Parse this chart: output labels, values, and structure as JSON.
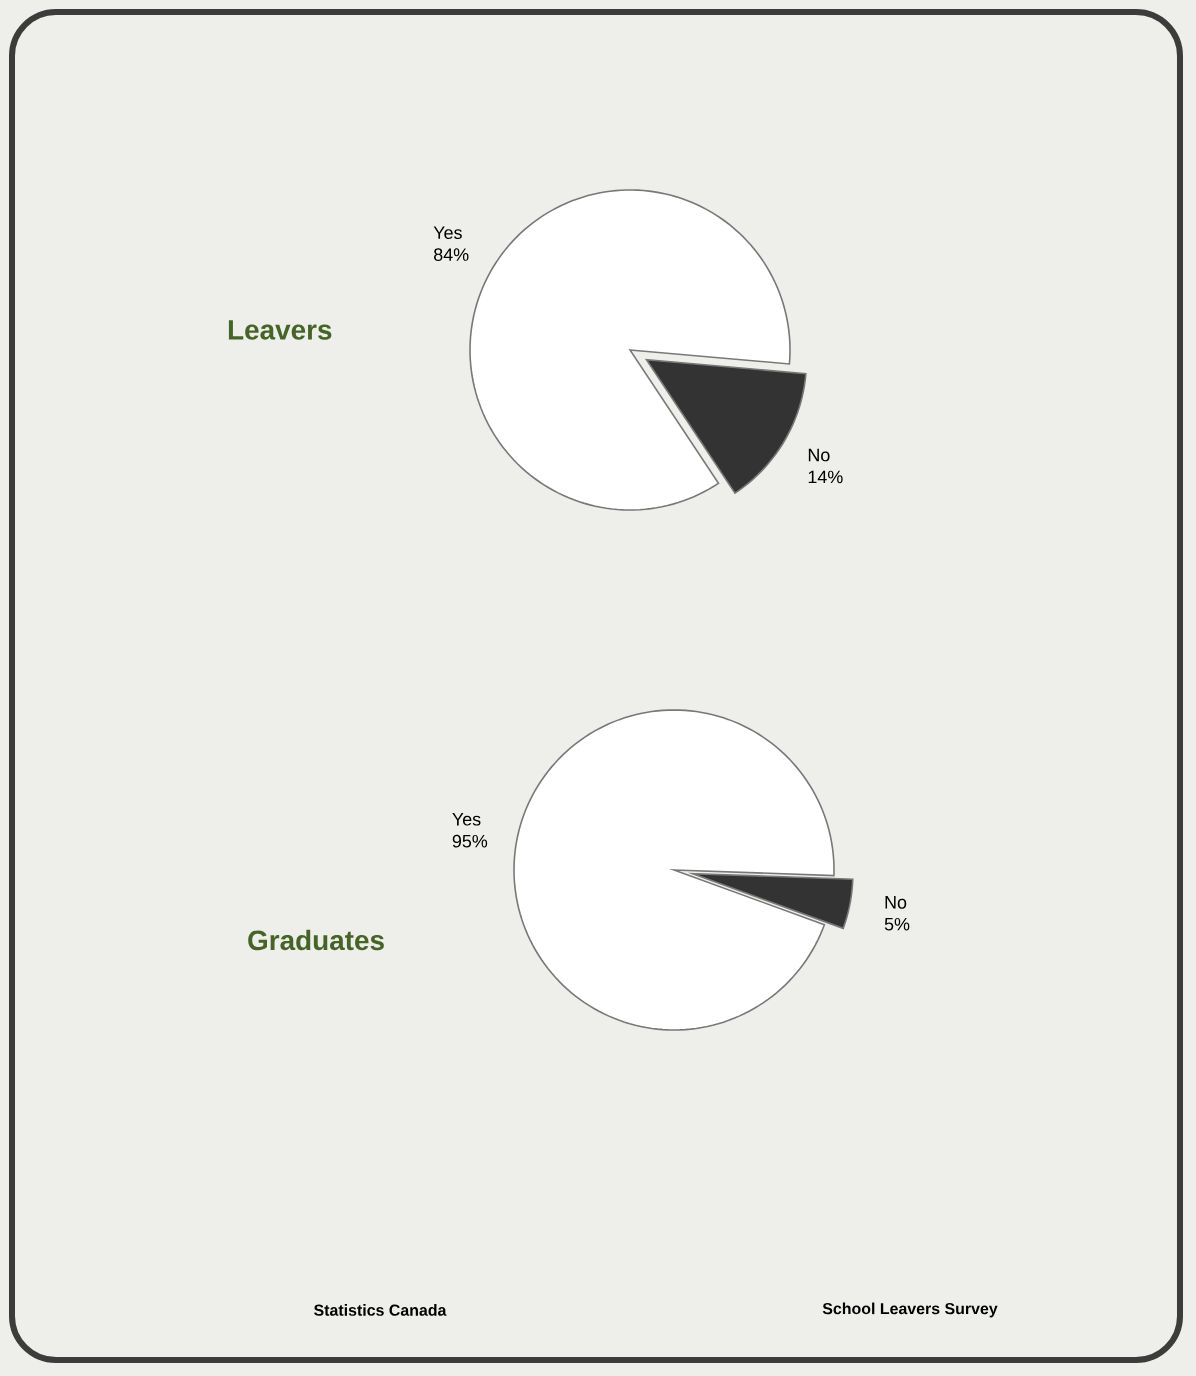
{
  "chart_data": [
    {
      "type": "pie",
      "title": "Leavers",
      "categories": [
        "Yes",
        "No"
      ],
      "values": [
        84,
        14
      ],
      "colors": [
        "#ffffff",
        "#333333"
      ],
      "value_labels": [
        "84%",
        "14%"
      ]
    },
    {
      "type": "pie",
      "title": "Graduates",
      "categories": [
        "Yes",
        "No"
      ],
      "values": [
        95,
        5
      ],
      "colors": [
        "#ffffff",
        "#333333"
      ],
      "value_labels": [
        "95%",
        "5%"
      ],
      "annotations": [
        "Statistics Canada",
        "School Leavers Survey"
      ]
    }
  ]
}
